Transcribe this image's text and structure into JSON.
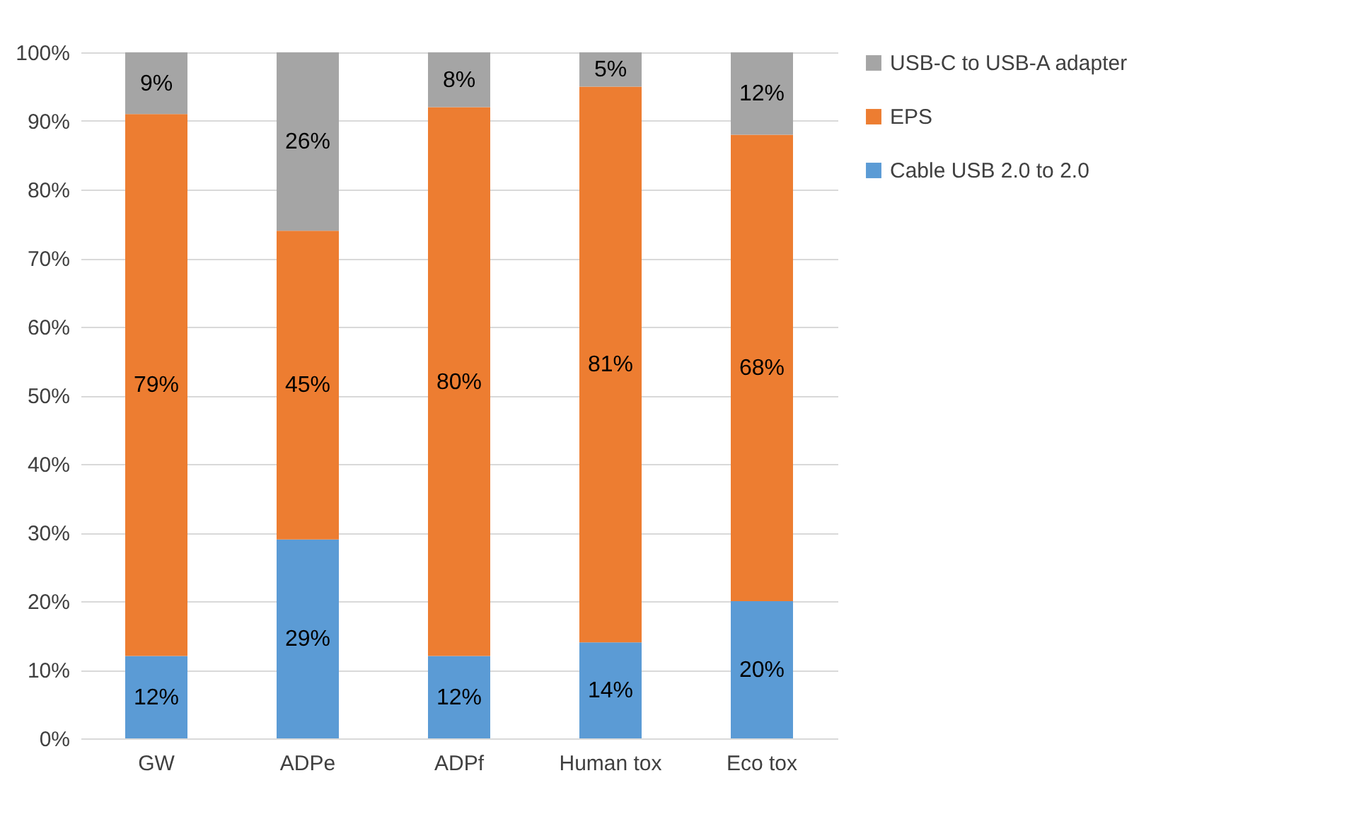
{
  "chart_data": {
    "type": "bar",
    "stacked": true,
    "categories": [
      "GW",
      "ADPe",
      "ADPf",
      "Human tox",
      "Eco tox"
    ],
    "series": [
      {
        "name": "Cable USB 2.0 to 2.0",
        "color": "#5b9bd5",
        "values": [
          12,
          29,
          12,
          14,
          20
        ]
      },
      {
        "name": "EPS",
        "color": "#ed7d31",
        "values": [
          79,
          45,
          80,
          81,
          68
        ]
      },
      {
        "name": "USB-C to USB-A adapter",
        "color": "#a5a5a5",
        "values": [
          9,
          26,
          8,
          5,
          12
        ]
      }
    ],
    "ylim": [
      0,
      100
    ],
    "yticks": [
      {
        "value": 0,
        "label": "0%"
      },
      {
        "value": 10,
        "label": "10%"
      },
      {
        "value": 20,
        "label": "20%"
      },
      {
        "value": 30,
        "label": "30%"
      },
      {
        "value": 40,
        "label": "40%"
      },
      {
        "value": 50,
        "label": "50%"
      },
      {
        "value": 60,
        "label": "60%"
      },
      {
        "value": 70,
        "label": "70%"
      },
      {
        "value": 80,
        "label": "80%"
      },
      {
        "value": 90,
        "label": "90%"
      },
      {
        "value": 100,
        "label": "100%"
      }
    ],
    "value_labels": [
      [
        "12%",
        "29%",
        "12%",
        "14%",
        "20%"
      ],
      [
        "79%",
        "45%",
        "80%",
        "81%",
        "68%"
      ],
      [
        "9%",
        "26%",
        "8%",
        "5%",
        "12%"
      ]
    ],
    "grid": "y",
    "legend": "right"
  }
}
